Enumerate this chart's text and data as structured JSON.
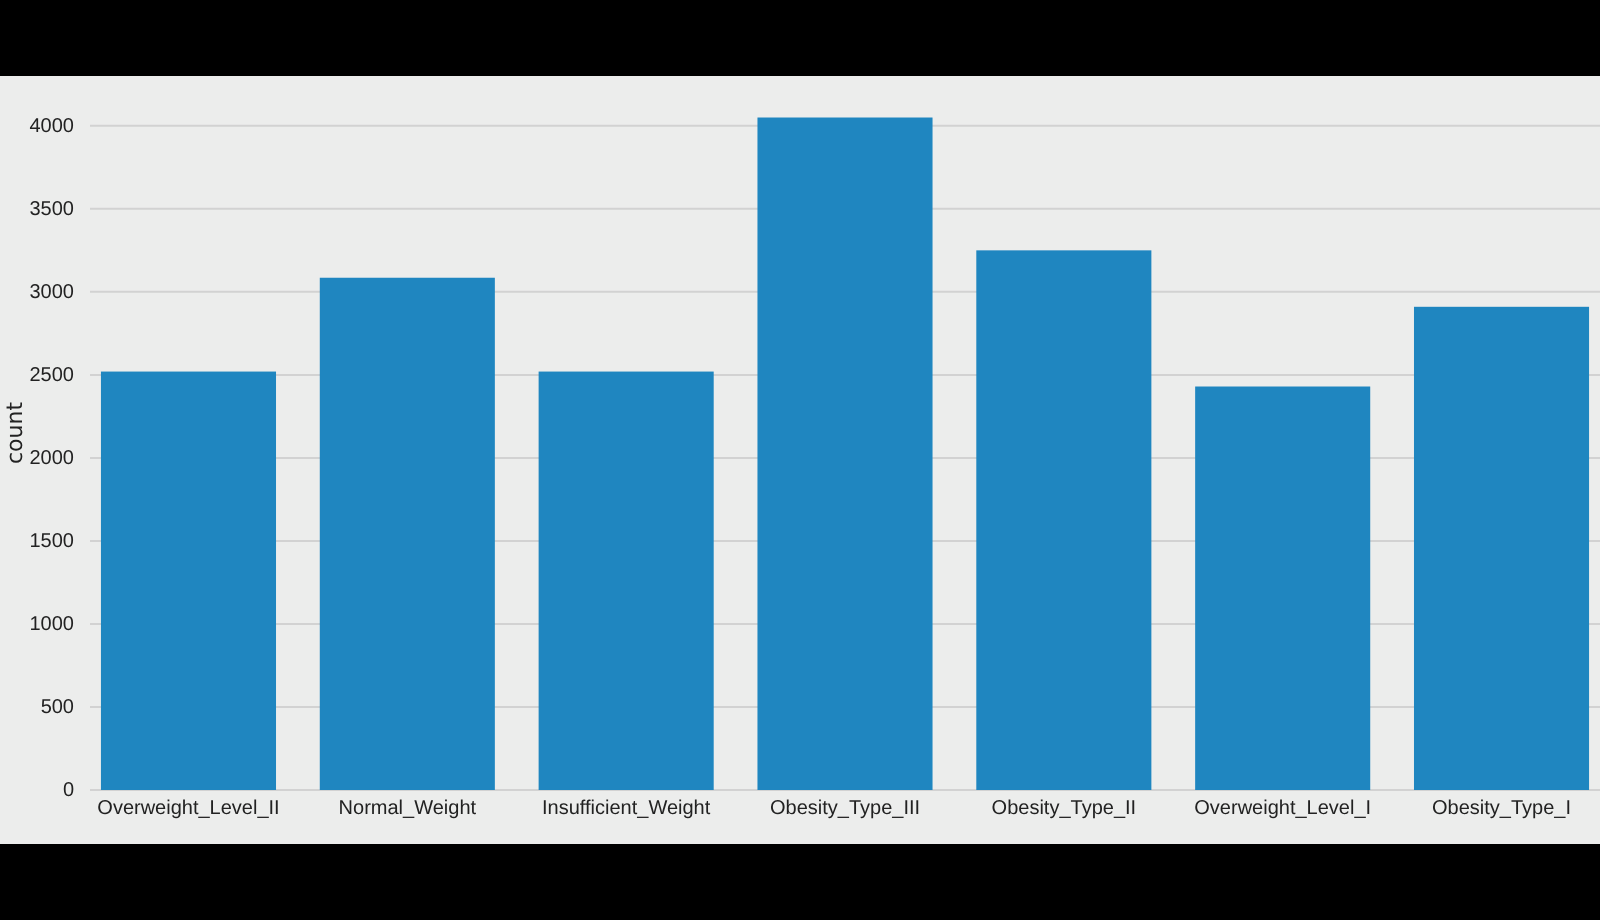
{
  "chart_data": {
    "type": "bar",
    "ylabel": "count",
    "categories": [
      "Overweight_Level_II",
      "Normal_Weight",
      "Insufficient_Weight",
      "Obesity_Type_III",
      "Obesity_Type_II",
      "Overweight_Level_I",
      "Obesity_Type_I"
    ],
    "values": [
      2520,
      3085,
      2520,
      4050,
      3250,
      2430,
      2910
    ],
    "color": "#1f86c0",
    "ylim": [
      0,
      4300
    ],
    "yticks": [
      0,
      500,
      1000,
      1500,
      2000,
      2500,
      3000,
      3500,
      4000
    ],
    "grid": "y"
  }
}
